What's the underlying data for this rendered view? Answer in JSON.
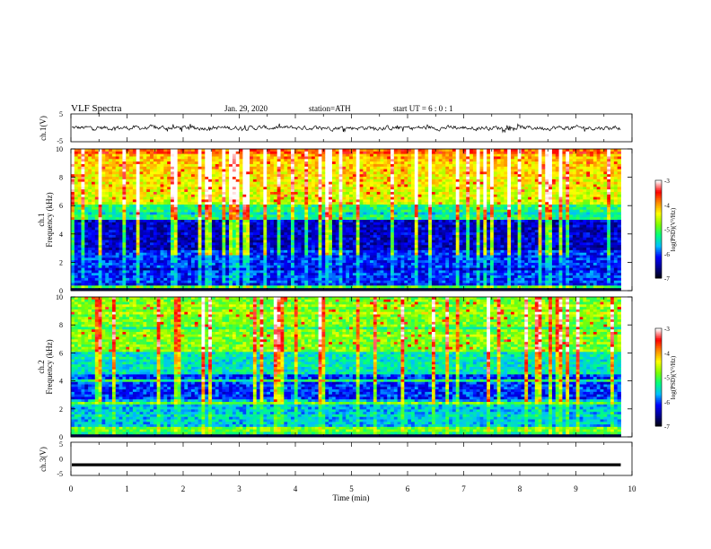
{
  "header": {
    "title": "VLF  Spectra",
    "date": "Jan. 29, 2020",
    "station": "station=ATH",
    "start": "start  UT  =   6  : 0   : 1"
  },
  "chart_data": [
    {
      "type": "line",
      "id": "ch1-waveform",
      "ylabel": "ch.1(V)",
      "ylim": [
        -5,
        5
      ],
      "yticks": [
        "5",
        "-5"
      ],
      "xlim": [
        0,
        10
      ],
      "data_end_min": 9.8,
      "baseline_v": 0,
      "description_values": {
        "min_v": -1.5,
        "max_v": 1.5
      }
    },
    {
      "type": "heatmap",
      "id": "ch1-spectrogram",
      "ylabel": "ch.1",
      "ylabel2": "Frequency  (kHz)",
      "ylim": [
        0,
        10
      ],
      "yticks": [
        "0",
        "2",
        "4",
        "6",
        "8",
        "10"
      ],
      "xlim": [
        0,
        10
      ],
      "data_end_min": 9.8,
      "colorbar": {
        "label": "log(PSD)(V²/Hz)",
        "range": [
          -7,
          -3
        ],
        "ticks": [
          "-3",
          "-4",
          "-5",
          "-6",
          "-7"
        ],
        "colors": [
          "#000000",
          "#00008b",
          "#0000ff",
          "#00bfff",
          "#00ff7f",
          "#7fff00",
          "#ffff00",
          "#ff8c00",
          "#ff0000",
          "#ffffff"
        ]
      }
    },
    {
      "type": "heatmap",
      "id": "ch2-spectrogram",
      "ylabel": "ch.2",
      "ylabel2": "Frequency  (kHz)",
      "ylim": [
        0,
        10
      ],
      "yticks": [
        "0",
        "2",
        "4",
        "6",
        "8",
        "10"
      ],
      "xlim": [
        0,
        10
      ],
      "data_end_min": 9.8,
      "colorbar": {
        "label": "log(PSD)(V²/Hz)",
        "range": [
          -7,
          -3
        ],
        "ticks": [
          "-3",
          "-4",
          "-5",
          "-6",
          "-7"
        ],
        "colors": [
          "#000000",
          "#00008b",
          "#0000ff",
          "#00bfff",
          "#00ff7f",
          "#7fff00",
          "#ffff00",
          "#ff8c00",
          "#ff0000",
          "#ffffff"
        ]
      }
    },
    {
      "type": "line",
      "id": "ch3-waveform",
      "ylabel": "ch.3(V)",
      "ylim": [
        -5,
        5
      ],
      "yticks": [
        "5",
        "0",
        "-5"
      ],
      "xlim": [
        0,
        10
      ],
      "data_end_min": 9.8,
      "baseline_v": -1.8
    }
  ],
  "xaxis": {
    "label": "Time  (min)",
    "ticks": [
      "0",
      "1",
      "2",
      "3",
      "4",
      "5",
      "6",
      "7",
      "8",
      "9",
      "10"
    ]
  }
}
